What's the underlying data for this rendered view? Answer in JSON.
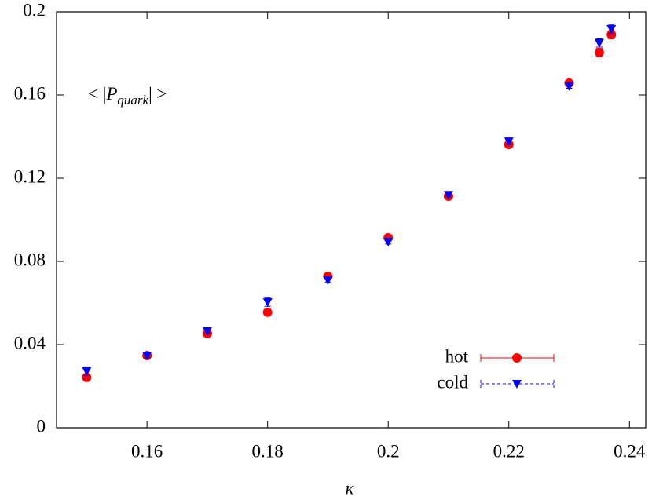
{
  "chart_data": {
    "type": "scatter",
    "x_label": "κ",
    "annotation": {
      "prefix": "< |",
      "symbol": "P",
      "subscript": "quark",
      "suffix": "| >"
    },
    "xlim": [
      0.145,
      0.2427
    ],
    "xticks": [
      0.16,
      0.18,
      0.2,
      0.22,
      0.24
    ],
    "ylim": [
      0,
      0.2
    ],
    "yticks": [
      0,
      0.04,
      0.08,
      0.12,
      0.16,
      0.2
    ],
    "legend": "lower right",
    "series": [
      {
        "name": "hot",
        "color": "#ff0000",
        "marker": "circle",
        "x": [
          0.15,
          0.16,
          0.17,
          0.18,
          0.19,
          0.2,
          0.21,
          0.22,
          0.23,
          0.235,
          0.237
        ],
        "values": [
          0.0242,
          0.0347,
          0.0453,
          0.0555,
          0.0728,
          0.0913,
          0.1113,
          0.1362,
          0.1657,
          0.1804,
          0.189
        ],
        "errors": [
          0.001,
          0.001,
          0.001,
          0.001,
          0.0012,
          0.0012,
          0.001,
          0.001,
          0.001,
          0.002,
          0.002
        ]
      },
      {
        "name": "cold",
        "color": "#0000ff",
        "marker": "triangle-down",
        "x": [
          0.15,
          0.16,
          0.17,
          0.18,
          0.19,
          0.2,
          0.21,
          0.22,
          0.23,
          0.235,
          0.237
        ],
        "values": [
          0.0272,
          0.0347,
          0.0464,
          0.0604,
          0.0709,
          0.0894,
          0.112,
          0.1377,
          0.1642,
          0.185,
          0.1917
        ],
        "errors": [
          0.002,
          0.001,
          0.001,
          0.002,
          0.001,
          0.001,
          0.001,
          0.0015,
          0.001,
          0.002,
          0.002
        ]
      }
    ]
  }
}
